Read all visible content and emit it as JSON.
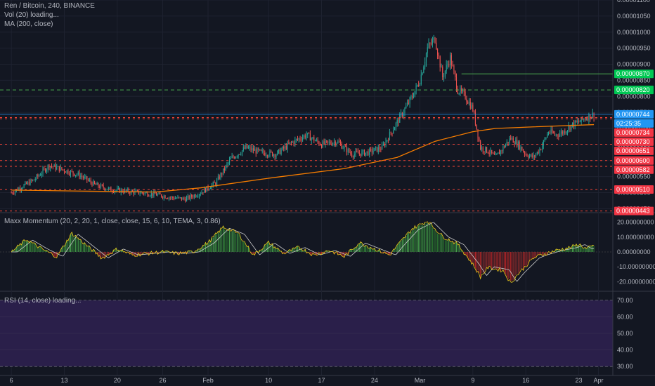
{
  "legends": {
    "symbol": "Ren / Bitcoin, 240, BINANCE",
    "vol": "Vol (20) loading...",
    "ma": "MA (200, close)",
    "momentum": "Maxx Momentum (20, 2, 20, 1, close, close, 15, 6, 10, TEMA, 3, 0.86)",
    "rsi": "RSI (14, close) loading..."
  },
  "colors": {
    "background": "#131722",
    "up": "#26a69a",
    "down": "#ef5350",
    "ma": "#f57c00",
    "green_line": "#4caf50",
    "red_line": "#f44336",
    "blue": "#2196f3",
    "rsi_band": "#2a1f4a",
    "hist_up": "#4caf50",
    "hist_down": "#c62828",
    "momentum_line": "#e6c619",
    "signal_line": "#cccccc"
  },
  "chart_data": [
    {
      "type": "candlestick",
      "title": "Ren / Bitcoin, 240, BINANCE",
      "x_ticks": [
        "6",
        "13",
        "20",
        "26",
        "Feb",
        "10",
        "17",
        "24",
        "Mar",
        "9",
        "16",
        "23",
        "Apr"
      ],
      "y_ticks": [
        "0.00001100",
        "0.00001050",
        "0.00001000",
        "0.00000950",
        "0.00000900",
        "0.00000850",
        "0.00000800",
        "0.00000750",
        "0.00000700",
        "0.00000650",
        "0.00000600",
        "0.00000550",
        "0.00000500",
        "0.00000450"
      ],
      "ylim": [
        4.4e-06,
        1.1e-05
      ],
      "close_trend": [
        [
          6,
          5e-06
        ],
        [
          9,
          5.4e-06
        ],
        [
          11,
          5.85e-06
        ],
        [
          13,
          5.7e-06
        ],
        [
          15,
          5.55e-06
        ],
        [
          17,
          5.25e-06
        ],
        [
          19,
          5.1e-06
        ],
        [
          21,
          5.05e-06
        ],
        [
          23,
          5e-06
        ],
        [
          25,
          4.95e-06
        ],
        [
          27,
          4.85e-06
        ],
        [
          29,
          4.8e-06
        ],
        [
          31,
          5e-06
        ],
        [
          33,
          5.3e-06
        ],
        [
          35,
          6.05e-06
        ],
        [
          37,
          6.4e-06
        ],
        [
          39,
          6.25e-06
        ],
        [
          41,
          6.2e-06
        ],
        [
          43,
          6.55e-06
        ],
        [
          45,
          6.8e-06
        ],
        [
          47,
          6.5e-06
        ],
        [
          49,
          6.6e-06
        ],
        [
          51,
          6.2e-06
        ],
        [
          53,
          6.25e-06
        ],
        [
          55,
          6.4e-06
        ],
        [
          57,
          7.2e-06
        ],
        [
          58,
          7.6e-06
        ],
        [
          59,
          8e-06
        ],
        [
          60,
          8.5e-06
        ],
        [
          61,
          9.5e-06
        ],
        [
          62,
          9.8e-06
        ],
        [
          63,
          8.6e-06
        ],
        [
          64,
          9.2e-06
        ],
        [
          65,
          8.2e-06
        ],
        [
          66,
          8e-06
        ],
        [
          67,
          7.6e-06
        ],
        [
          68,
          6.4e-06
        ],
        [
          69,
          6.3e-06
        ],
        [
          70,
          6.1e-06
        ],
        [
          71,
          6.4e-06
        ],
        [
          72,
          6.7e-06
        ],
        [
          73,
          6.5e-06
        ],
        [
          74,
          6.2e-06
        ],
        [
          75,
          6.1e-06
        ],
        [
          76,
          6.4e-06
        ],
        [
          77,
          6.9e-06
        ],
        [
          78,
          6.8e-06
        ],
        [
          79,
          6.9e-06
        ],
        [
          80,
          7.1e-06
        ],
        [
          81,
          7.2e-06
        ],
        [
          82,
          7.35e-06
        ],
        [
          83,
          7.44e-06
        ]
      ],
      "ma_trend": [
        [
          6,
          5.08e-06
        ],
        [
          15,
          5.05e-06
        ],
        [
          25,
          5.02e-06
        ],
        [
          31,
          5.15e-06
        ],
        [
          40,
          5.45e-06
        ],
        [
          50,
          5.75e-06
        ],
        [
          57,
          6.1e-06
        ],
        [
          62,
          6.6e-06
        ],
        [
          67,
          6.9e-06
        ],
        [
          70,
          7e-06
        ],
        [
          75,
          7.05e-06
        ],
        [
          83,
          7.12e-06
        ]
      ],
      "hlines_green": [
        "0.00000870",
        "0.00000820"
      ],
      "hlines_red": [
        "0.00000734",
        "0.00000730",
        "0.00000651",
        "0.00000600",
        "0.00000582",
        "0.00000510",
        "0.00000443"
      ],
      "price_tags": [
        {
          "text": "0.00000870",
          "color": "green"
        },
        {
          "text": "0.00000820",
          "color": "green"
        },
        {
          "text": "0.00000744",
          "color": "blue"
        },
        {
          "text": "02:25:35",
          "color": "blue"
        },
        {
          "text": "0.00000734",
          "color": "red"
        },
        {
          "text": "0.00000730",
          "color": "red"
        },
        {
          "text": "0.00000651",
          "color": "red"
        },
        {
          "text": "0.00000600",
          "color": "red"
        },
        {
          "text": "0.00000582",
          "color": "red"
        },
        {
          "text": "0.00000510",
          "color": "red"
        },
        {
          "text": "0.00000443",
          "color": "red"
        }
      ]
    },
    {
      "type": "bar",
      "title": "Maxx Momentum (20, 2, 20, 1, close, close, 15, 6, 10, TEMA, 3, 0.86)",
      "y_ticks": [
        "20.00000000",
        "10.00000000",
        "0.00000000",
        "-10.00000000",
        "-20.00000000"
      ],
      "ylim": [
        -26,
        26
      ],
      "trend": [
        [
          6,
          0
        ],
        [
          8,
          8
        ],
        [
          10,
          2
        ],
        [
          12,
          -3
        ],
        [
          14,
          12
        ],
        [
          16,
          4
        ],
        [
          18,
          -4
        ],
        [
          20,
          2
        ],
        [
          22,
          -2
        ],
        [
          24,
          -1
        ],
        [
          26,
          0
        ],
        [
          28,
          -1
        ],
        [
          30,
          0
        ],
        [
          32,
          6
        ],
        [
          34,
          16
        ],
        [
          36,
          12
        ],
        [
          38,
          -2
        ],
        [
          40,
          6
        ],
        [
          42,
          -1
        ],
        [
          44,
          3
        ],
        [
          46,
          -2
        ],
        [
          48,
          1
        ],
        [
          50,
          -3
        ],
        [
          52,
          6
        ],
        [
          54,
          2
        ],
        [
          56,
          -2
        ],
        [
          57,
          4
        ],
        [
          59,
          15
        ],
        [
          61,
          20
        ],
        [
          63,
          10
        ],
        [
          65,
          5
        ],
        [
          67,
          -8
        ],
        [
          68,
          -16
        ],
        [
          69,
          -10
        ],
        [
          71,
          -12
        ],
        [
          72,
          -20
        ],
        [
          73,
          -14
        ],
        [
          75,
          -4
        ],
        [
          76,
          -2
        ],
        [
          78,
          1
        ],
        [
          80,
          3
        ],
        [
          81,
          5
        ],
        [
          82,
          2
        ],
        [
          83,
          4
        ]
      ]
    },
    {
      "type": "line",
      "title": "RSI (14, close) loading...",
      "y_ticks": [
        "70.00",
        "60.00",
        "50.00",
        "40.00",
        "30.00"
      ],
      "ylim": [
        25,
        75
      ]
    }
  ]
}
